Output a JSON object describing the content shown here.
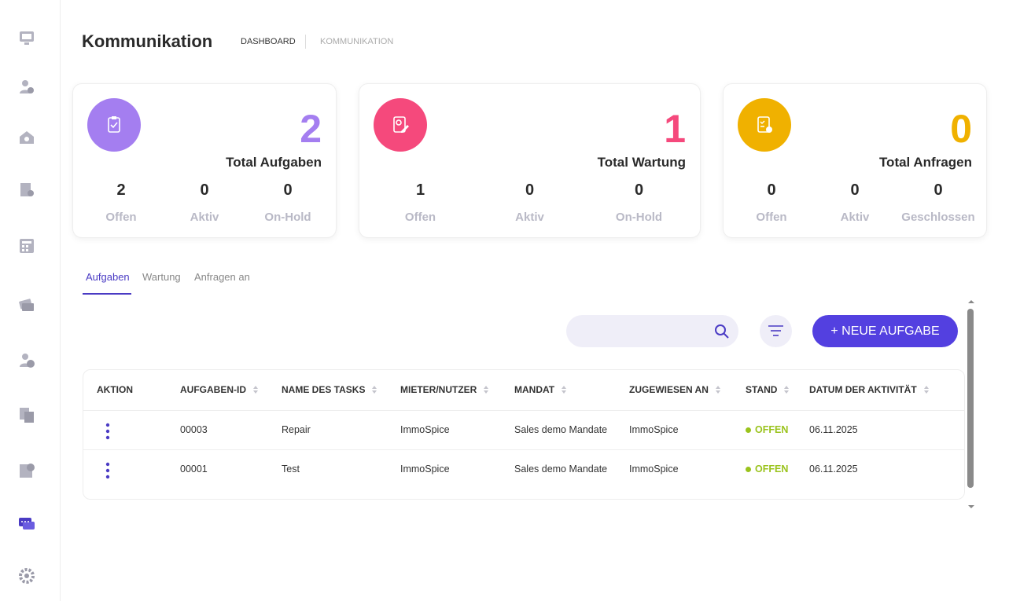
{
  "header": {
    "title": "Kommunikation",
    "breadcrumb": [
      "DASHBOARD",
      "KOMMUNIKATION"
    ]
  },
  "cards": [
    {
      "total": "2",
      "label": "Total Aufgaben",
      "stats": [
        {
          "value": "2",
          "label": "Offen"
        },
        {
          "value": "0",
          "label": "Aktiv"
        },
        {
          "value": "0",
          "label": "On-Hold"
        }
      ]
    },
    {
      "total": "1",
      "label": "Total Wartung",
      "stats": [
        {
          "value": "1",
          "label": "Offen"
        },
        {
          "value": "0",
          "label": "Aktiv"
        },
        {
          "value": "0",
          "label": "On-Hold"
        }
      ]
    },
    {
      "total": "0",
      "label": "Total Anfragen",
      "stats": [
        {
          "value": "0",
          "label": "Offen"
        },
        {
          "value": "0",
          "label": "Aktiv"
        },
        {
          "value": "0",
          "label": "Geschlossen"
        }
      ]
    }
  ],
  "tabs": [
    "Aufgaben",
    "Wartung",
    "Anfragen an"
  ],
  "new_button": "+ NEUE AUFGABE",
  "table": {
    "columns": [
      "AKTION",
      "AUFGABEN-ID",
      "NAME DES TASKS",
      "MIETER/NUTZER",
      "MANDAT",
      "ZUGEWIESEN AN",
      "STAND",
      "DATUM DER AKTIVITÄT"
    ],
    "rows": [
      [
        "00003",
        "Repair",
        "ImmoSpice",
        "Sales demo Mandate",
        "ImmoSpice",
        "OFFEN",
        "06.11.2025"
      ],
      [
        "00001",
        "Test",
        "ImmoSpice",
        "Sales demo Mandate",
        "ImmoSpice",
        "OFFEN",
        "06.11.2025"
      ]
    ]
  }
}
